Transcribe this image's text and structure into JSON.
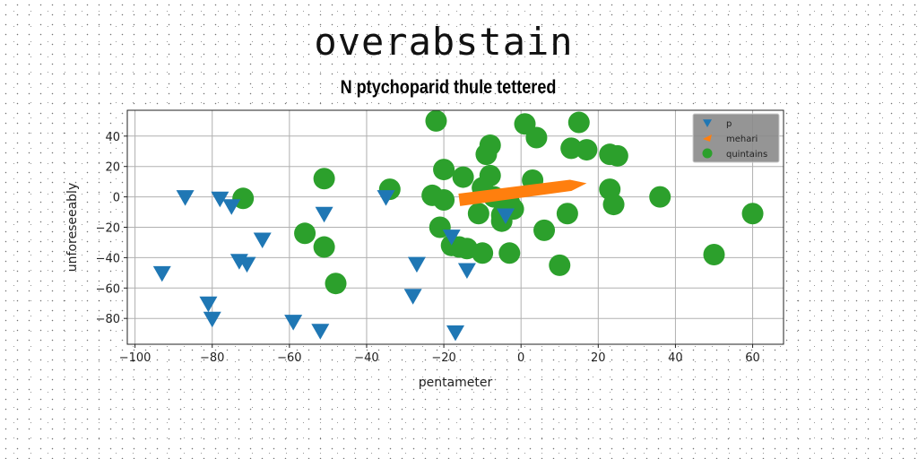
{
  "page": {
    "title": "overabstain",
    "subtitle": "N ptychoparid thule tettered"
  },
  "chart_data": {
    "type": "scatter",
    "title": "N ptychoparid thule tettered",
    "xlabel": "pentameter",
    "ylabel": "unforeseeably",
    "xlim": [
      -102,
      68
    ],
    "ylim": [
      -97,
      57
    ],
    "xticks": [
      -100,
      -80,
      -60,
      -40,
      -20,
      0,
      20,
      40,
      60
    ],
    "yticks": [
      -80,
      -60,
      -40,
      -20,
      0,
      20,
      40
    ],
    "grid": true,
    "legend_position": "top-right",
    "series": [
      {
        "name": "p",
        "marker": "triangle-down",
        "color": "#1f77b4",
        "x": [
          -87,
          -78,
          -75,
          -67,
          -73,
          -71,
          -93,
          -81,
          -80,
          -59,
          -52,
          -51,
          -35,
          -27,
          -28,
          -18,
          -14,
          -17,
          -4
        ],
        "y": [
          0,
          -1,
          -6,
          -28,
          -42,
          -44,
          -50,
          -70,
          -80,
          -82,
          -88,
          -11,
          0,
          -44,
          -65,
          -26,
          -48,
          -89,
          -12
        ]
      },
      {
        "name": "mehari",
        "marker": "line-wedge",
        "color": "#ff7f0e",
        "x": [
          -16,
          17
        ],
        "y": [
          -2,
          9
        ]
      },
      {
        "name": "quintains",
        "marker": "circle",
        "color": "#2ca02c",
        "x": [
          -22,
          1,
          4,
          15,
          13,
          17,
          -8,
          -9,
          23,
          25,
          -20,
          -15,
          -8,
          -10,
          3,
          -34,
          -23,
          -20,
          -7,
          -3,
          -11,
          -5,
          -2,
          23,
          24,
          36,
          60,
          12,
          -72,
          -51,
          -56,
          -51,
          -48,
          -21,
          -18,
          -16,
          -14,
          -10,
          -3,
          6,
          10,
          50,
          -5
        ],
        "y": [
          50,
          48,
          39,
          49,
          32,
          31,
          34,
          28,
          28,
          27,
          18,
          13,
          14,
          6,
          11,
          5,
          1,
          -2,
          0,
          -4,
          -11,
          -12,
          -8,
          5,
          -5,
          0,
          -11,
          -11,
          -1,
          12,
          -24,
          -33,
          -57,
          -20,
          -32,
          -33,
          -34,
          -37,
          -37,
          -22,
          -45,
          -38,
          -16
        ]
      }
    ]
  }
}
